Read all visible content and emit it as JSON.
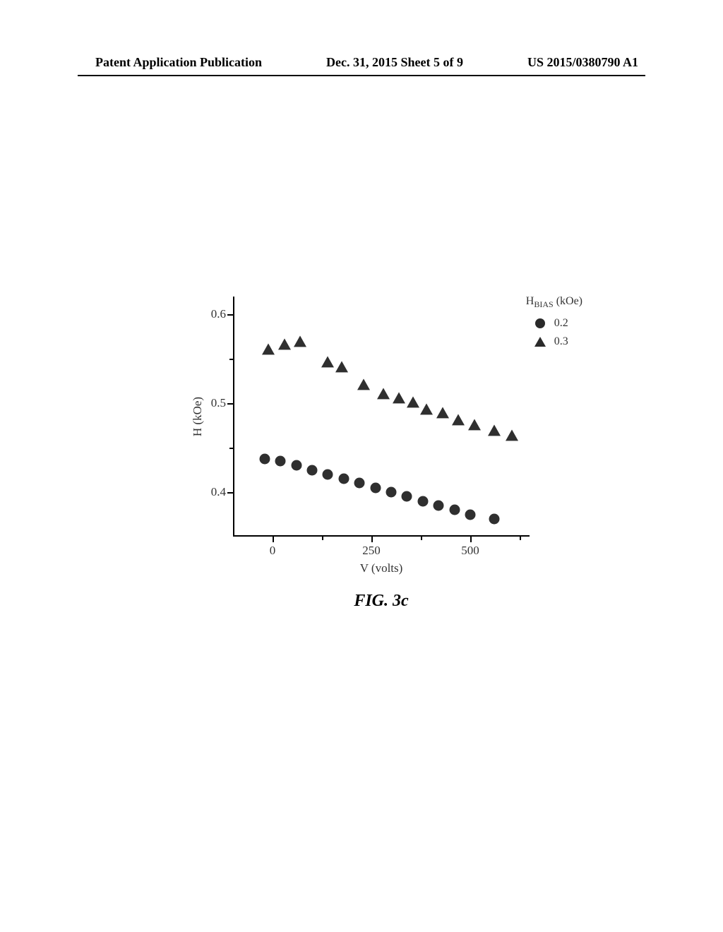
{
  "header": {
    "left": "Patent Application Publication",
    "center": "Dec. 31, 2015  Sheet 5 of 9",
    "right": "US 2015/0380790 A1"
  },
  "chart": {
    "type": "scatter",
    "ylabel": "H (kOe)",
    "xlabel": "V (volts)",
    "ylim": [
      0.35,
      0.62
    ],
    "xlim": [
      -100,
      650
    ],
    "yticks": [
      0.4,
      0.5,
      0.6
    ],
    "yticks_minor": [
      0.45,
      0.55
    ],
    "xticks": [
      0,
      250,
      500
    ],
    "xticks_minor": [
      125,
      375,
      625
    ],
    "background_color": "#ffffff",
    "axis_color": "#000000",
    "marker_color": "#2f2f2f",
    "circle_size": 15,
    "triangle_size": 16,
    "tick_fontsize": 17,
    "label_fontsize": 17,
    "legend": {
      "title_prefix": "H",
      "title_sub": "BIAS",
      "title_suffix": " (kOe)",
      "items": [
        {
          "marker": "circle",
          "label": "0.2"
        },
        {
          "marker": "triangle",
          "label": "0.3"
        }
      ]
    },
    "series": [
      {
        "marker": "circle",
        "data": [
          {
            "x": -20,
            "y": 0.437
          },
          {
            "x": 20,
            "y": 0.435
          },
          {
            "x": 60,
            "y": 0.43
          },
          {
            "x": 100,
            "y": 0.425
          },
          {
            "x": 140,
            "y": 0.42
          },
          {
            "x": 180,
            "y": 0.415
          },
          {
            "x": 220,
            "y": 0.41
          },
          {
            "x": 260,
            "y": 0.405
          },
          {
            "x": 300,
            "y": 0.4
          },
          {
            "x": 340,
            "y": 0.395
          },
          {
            "x": 380,
            "y": 0.39
          },
          {
            "x": 420,
            "y": 0.385
          },
          {
            "x": 460,
            "y": 0.38
          },
          {
            "x": 500,
            "y": 0.375
          },
          {
            "x": 560,
            "y": 0.37
          }
        ]
      },
      {
        "marker": "triangle",
        "data": [
          {
            "x": -10,
            "y": 0.56
          },
          {
            "x": 30,
            "y": 0.565
          },
          {
            "x": 70,
            "y": 0.568
          },
          {
            "x": 140,
            "y": 0.545
          },
          {
            "x": 175,
            "y": 0.54
          },
          {
            "x": 230,
            "y": 0.52
          },
          {
            "x": 280,
            "y": 0.51
          },
          {
            "x": 320,
            "y": 0.505
          },
          {
            "x": 355,
            "y": 0.5
          },
          {
            "x": 390,
            "y": 0.492
          },
          {
            "x": 430,
            "y": 0.488
          },
          {
            "x": 470,
            "y": 0.48
          },
          {
            "x": 510,
            "y": 0.475
          },
          {
            "x": 560,
            "y": 0.468
          },
          {
            "x": 605,
            "y": 0.463
          }
        ]
      }
    ]
  },
  "caption": "FIG. 3c"
}
